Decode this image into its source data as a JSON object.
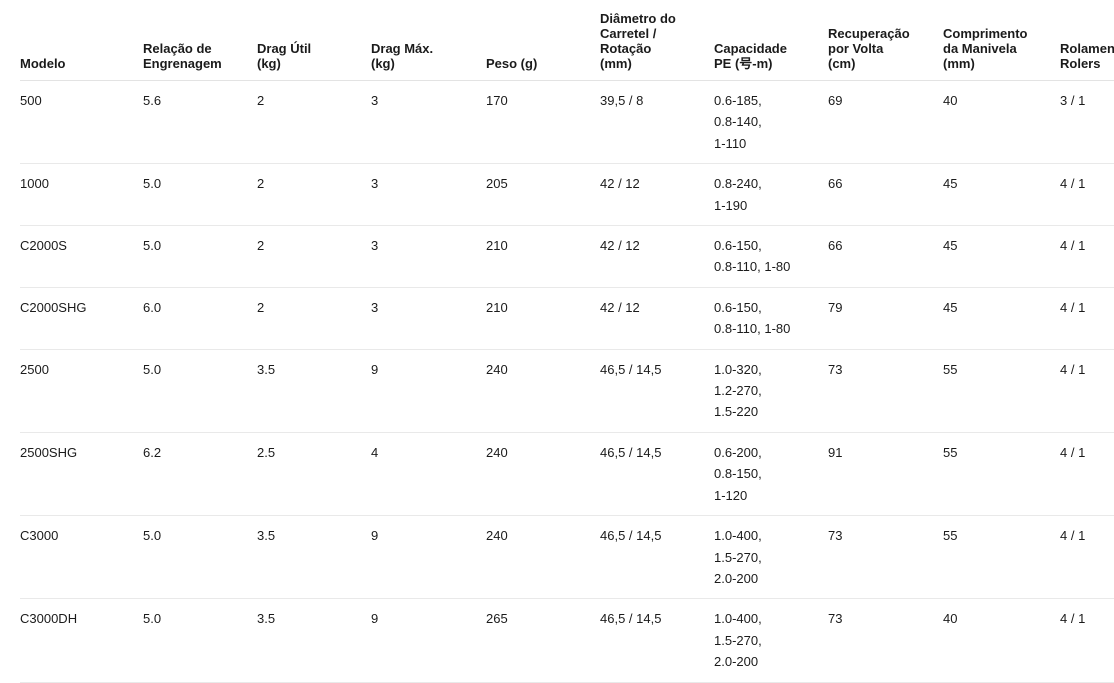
{
  "colors": {
    "text": "#1b1b1b",
    "header_border": "#e3e3e3",
    "row_border": "#e9e9e9",
    "background": "#ffffff"
  },
  "table": {
    "columns": [
      {
        "id": "modelo",
        "label": "Modelo"
      },
      {
        "id": "relacao-engrenagem",
        "label": "Relação de\nEngrenagem"
      },
      {
        "id": "drag-util",
        "label": "Drag Útil\n(kg)"
      },
      {
        "id": "drag-max",
        "label": "Drag Máx.\n(kg)"
      },
      {
        "id": "peso",
        "label": "Peso (g)"
      },
      {
        "id": "diametro-carretel",
        "label": "Diâmetro do\nCarretel /\nRotação\n(mm)"
      },
      {
        "id": "capacidade-pe",
        "label": "Capacidade\nPE (号-m)"
      },
      {
        "id": "recuperacao-por-volta",
        "label": "Recuperação\npor Volta\n(cm)"
      },
      {
        "id": "comprimento-manivela",
        "label": "Comprimento\nda Manivela\n(mm)"
      },
      {
        "id": "rolamentos-rolers",
        "label": "Rolamentos\nRolers"
      }
    ],
    "rows": [
      {
        "cells": [
          "500",
          "5.6",
          "2",
          "3",
          "170",
          "39,5 / 8",
          "0.6-185,\n0.8-140,\n1-110",
          "69",
          "40",
          "3 / 1"
        ]
      },
      {
        "cells": [
          "1000",
          "5.0",
          "2",
          "3",
          "205",
          "42 / 12",
          "0.8-240,\n1-190",
          "66",
          "45",
          "4 / 1"
        ]
      },
      {
        "cells": [
          "C2000S",
          "5.0",
          "2",
          "3",
          "210",
          "42 / 12",
          "0.6-150,\n0.8-110, 1-80",
          "66",
          "45",
          "4 / 1"
        ]
      },
      {
        "cells": [
          "C2000SHG",
          "6.0",
          "2",
          "3",
          "210",
          "42 / 12",
          "0.6-150,\n0.8-110, 1-80",
          "79",
          "45",
          "4 / 1"
        ]
      },
      {
        "cells": [
          "2500",
          "5.0",
          "3.5",
          "9",
          "240",
          "46,5 / 14,5",
          "1.0-320,\n1.2-270,\n1.5-220",
          "73",
          "55",
          "4 / 1"
        ]
      },
      {
        "cells": [
          "2500SHG",
          "6.2",
          "2.5",
          "4",
          "240",
          "46,5 / 14,5",
          "0.6-200,\n0.8-150,\n1-120",
          "91",
          "55",
          "4 / 1"
        ]
      },
      {
        "cells": [
          "C3000",
          "5.0",
          "3.5",
          "9",
          "240",
          "46,5 / 14,5",
          "1.0-400,\n1.5-270,\n2.0-200",
          "73",
          "55",
          "4 / 1"
        ]
      },
      {
        "cells": [
          "C3000DH",
          "5.0",
          "3.5",
          "9",
          "265",
          "46,5 / 14,5",
          "1.0-400,\n1.5-270,\n2.0-200",
          "73",
          "40",
          "4 / 1"
        ]
      }
    ]
  }
}
